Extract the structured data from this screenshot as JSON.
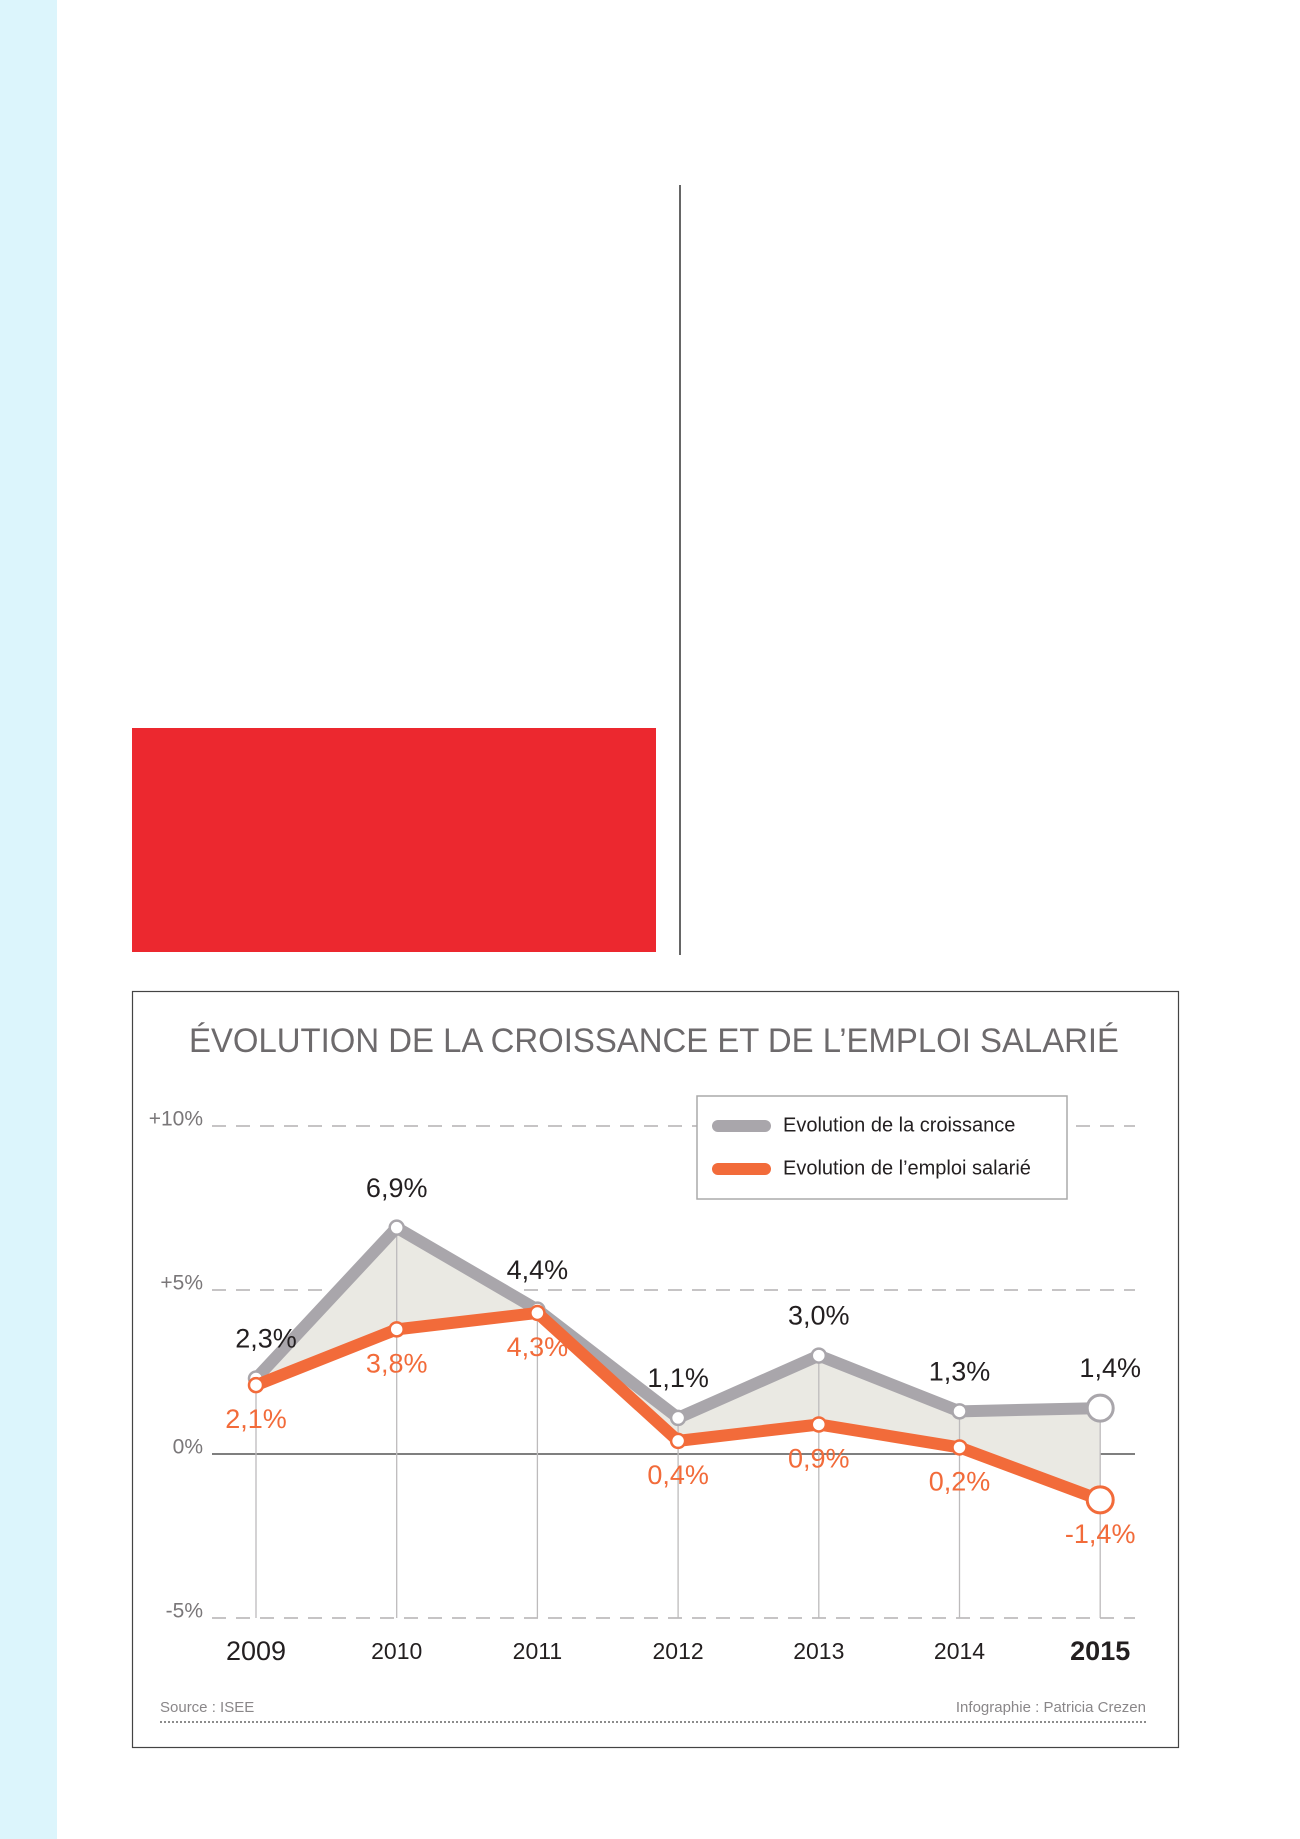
{
  "chart_data": {
    "type": "line",
    "title": "ÉVOLUTION DE LA CROISSANCE ET DE L’EMPLOI SALARIÉ",
    "categories": [
      "2009",
      "2010",
      "2011",
      "2012",
      "2013",
      "2014",
      "2015"
    ],
    "series": [
      {
        "name": "Evolution de la croissance",
        "color": "#a9a6ab",
        "label_color": "#231f20",
        "values": [
          2.3,
          6.9,
          4.4,
          1.1,
          3.0,
          1.3,
          1.4
        ],
        "value_labels": [
          "2,3%",
          "6,9%",
          "4,4%",
          "1,1%",
          "3,0%",
          "1,3%",
          "1,4%"
        ]
      },
      {
        "name": "Evolution de l’emploi salarié",
        "color": "#f26b3a",
        "label_color": "#f26b3a",
        "values": [
          2.1,
          3.8,
          4.3,
          0.4,
          0.9,
          0.2,
          -1.4
        ],
        "value_labels": [
          "2,1%",
          "3,8%",
          "4,3%",
          "0,4%",
          "0,9%",
          "0,2%",
          "-1,4%"
        ]
      }
    ],
    "ylim": [
      -5,
      10
    ],
    "yticks": [
      {
        "value": -5,
        "label": "-5%"
      },
      {
        "value": 0,
        "label": "0%"
      },
      {
        "value": 5,
        "label": "+5%"
      },
      {
        "value": 10,
        "label": "+10%"
      }
    ],
    "grid": true,
    "legend": "top-right",
    "source": "Source : ISEE",
    "credit": "Infographie : Patricia Crezen"
  }
}
